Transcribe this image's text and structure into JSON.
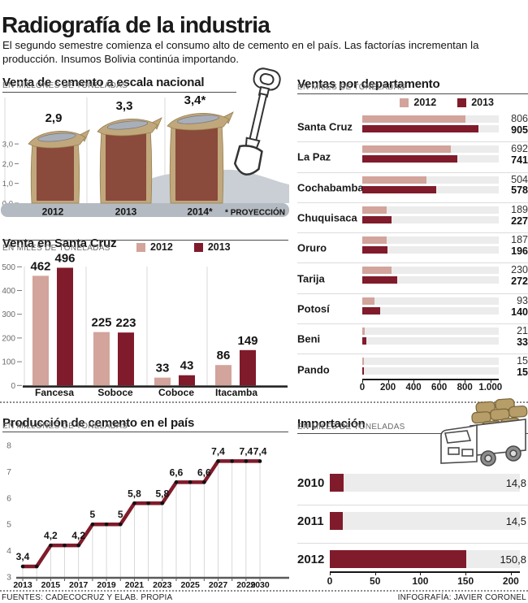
{
  "header": {
    "title": "Radiografía de la industria",
    "subtitle": "El segundo semestre comienza el consumo alto de cemento en el país. Las factorías incrementan la producción. Insumos Bolivia continúa importando."
  },
  "colors": {
    "c2012": "#d2a49b",
    "c2013": "#801b2b",
    "track": "#ececec",
    "grid": "#d8d8d8",
    "unit_gray": "#6b6b6b",
    "bag_tan": "#c1a77c",
    "bag_edge": "#97804e",
    "bag_front": "#8a4a3c",
    "bag_opening": "#a9afb9",
    "pile": "#c9cfd4",
    "band": "#b4bac1",
    "axis_dark": "#1f1f1f"
  },
  "footer": {
    "sources": "FUENTES: CADECOCRUZ Y ELAB. PROPIA",
    "credit": "INFOGRAFÍA: JAVIER CORONEL"
  },
  "chart_data": [
    {
      "id": "national",
      "type": "bar",
      "title": "Venta de cemento a escala nacional",
      "unit": "EN MILLONES DE TONELADAS",
      "categories": [
        "2012",
        "2013",
        "2014*"
      ],
      "values": [
        2.9,
        3.3,
        3.4
      ],
      "value_labels": [
        "2,9",
        "3,3",
        "3,4*"
      ],
      "note": "* PROYECCIÓN",
      "yticks": [
        "3,0",
        "2,0",
        "1,0",
        "0,0"
      ],
      "ytick_values": [
        3,
        2,
        1,
        0
      ],
      "ylim": [
        0,
        3.6
      ]
    },
    {
      "id": "departments",
      "type": "bar-horizontal-grouped",
      "title": "Ventas por departamento",
      "unit": "EN MILES DE TONELADAS",
      "legend": [
        "2012",
        "2013"
      ],
      "categories": [
        "Santa Cruz",
        "La Paz",
        "Cochabamba",
        "Chuquisaca",
        "Oruro",
        "Tarija",
        "Potosí",
        "Beni",
        "Pando"
      ],
      "series": [
        {
          "name": "2012",
          "values": [
            806,
            692,
            504,
            189,
            187,
            230,
            93,
            21,
            15
          ]
        },
        {
          "name": "2013",
          "values": [
            905,
            741,
            578,
            227,
            196,
            272,
            140,
            33,
            15
          ]
        }
      ],
      "xticks": [
        "0",
        "200",
        "400",
        "600",
        "800",
        "1.000"
      ],
      "xtick_values": [
        0,
        200,
        400,
        600,
        800,
        1000
      ],
      "xmax": 1065
    },
    {
      "id": "santacruz",
      "type": "bar-grouped",
      "title": "Venta en Santa Cruz",
      "unit": "EN MILES DE TONELADAS",
      "legend": [
        "2012",
        "2013"
      ],
      "categories": [
        "Fancesa",
        "Soboce",
        "Coboce",
        "Itacamba"
      ],
      "series": [
        {
          "name": "2012",
          "values": [
            462,
            225,
            33,
            86
          ]
        },
        {
          "name": "2013",
          "values": [
            496,
            223,
            43,
            149
          ]
        }
      ],
      "yticks": [
        0,
        100,
        200,
        300,
        400,
        500
      ],
      "ylim": [
        0,
        500
      ]
    },
    {
      "id": "production",
      "type": "line-step",
      "title": "Producción de cemento en el país",
      "unit": "EN MILLONES DE TONELADAS",
      "years": [
        2013,
        2014,
        2015,
        2016,
        2017,
        2018,
        2019,
        2020,
        2021,
        2022,
        2023,
        2024,
        2025,
        2026,
        2027,
        2028,
        2029,
        2030
      ],
      "values": [
        3.4,
        3.4,
        4.2,
        4.2,
        4.2,
        5,
        5,
        5,
        5.8,
        5.8,
        5.8,
        6.6,
        6.6,
        6.6,
        7.4,
        7.4,
        7.4,
        7.4
      ],
      "point_labels": {
        "0": "3,4",
        "2": "4,2",
        "4": "4,2",
        "5": "5",
        "7": "5",
        "8": "5,8",
        "10": "5,8",
        "11": "6,6",
        "13": "6,6",
        "14": "7,4",
        "16": "7,4",
        "17": "7,4"
      },
      "xtick_indices": [
        0,
        2,
        4,
        6,
        8,
        10,
        12,
        14,
        16,
        17
      ],
      "yticks": [
        8,
        7,
        6,
        5,
        4,
        3
      ],
      "ylim": [
        3,
        8
      ]
    },
    {
      "id": "imports",
      "type": "bar-horizontal",
      "title": "Importación",
      "unit": "EN MILES DE TONELADAS",
      "categories": [
        "2010",
        "2011",
        "2012"
      ],
      "values": [
        14.8,
        14.5,
        150.8
      ],
      "value_labels": [
        "14,8",
        "14,5",
        "150,8"
      ],
      "xticks": [
        "0",
        "50",
        "100",
        "150",
        "200"
      ],
      "xtick_values": [
        0,
        50,
        100,
        150,
        200
      ],
      "xmax": 210
    }
  ]
}
